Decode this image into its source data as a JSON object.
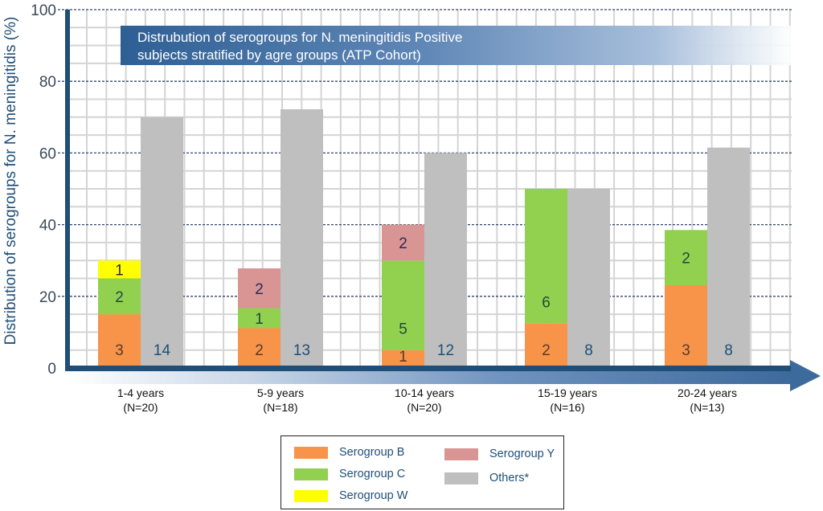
{
  "chart_data": {
    "type": "bar",
    "title": "Distrubution of serogroups for N. meningitidis Positive subjects stratified by agre groups (ATP Cohort)",
    "title_lines": [
      "Distrubution of serogroups for N. meningitidis Positive",
      "subjects stratified by agre groups (ATP Cohort)"
    ],
    "ylabel": "Distribution of serogroups for N. meningitidis (%)",
    "xlabel": "",
    "ylim": [
      0,
      100
    ],
    "yticks": [
      "0",
      "20",
      "40",
      "60",
      "80",
      "100"
    ],
    "ytick_values": [
      0,
      20,
      40,
      60,
      80,
      100
    ],
    "grid": true,
    "legend_position": "bottom-center",
    "categories": [
      {
        "label": "1-4 years",
        "n": "(N=20)"
      },
      {
        "label": "5-9 years",
        "n": "(N=18)"
      },
      {
        "label": "10-14 years",
        "n": "(N=20)"
      },
      {
        "label": "15-19 years",
        "n": "(N=16)"
      },
      {
        "label": "20-24 years",
        "n": "(N=13)"
      }
    ],
    "stacked_series": [
      {
        "name": "Serogroup B",
        "color": "#f7944a",
        "label_color": "#5a3a2a",
        "percent": [
          15,
          11.1,
          5,
          12.5,
          23.1
        ],
        "counts": [
          "3",
          "2",
          "1",
          "2",
          "3"
        ]
      },
      {
        "name": "Serogroup C",
        "color": "#92d050",
        "label_color": "#1e4a3a",
        "percent": [
          10,
          5.6,
          25,
          37.5,
          15.4
        ],
        "counts": [
          "2",
          "1",
          "5",
          "6",
          "2"
        ]
      },
      {
        "name": "Serogroup W",
        "color": "#ffff00",
        "label_color": "#2a2a2a",
        "percent": [
          5,
          0,
          0,
          0,
          0
        ],
        "counts": [
          "1",
          "",
          "",
          "",
          ""
        ]
      },
      {
        "name": "Serogroup Y",
        "color": "#d99594",
        "label_color": "#2a2a5a",
        "percent": [
          0,
          11.1,
          10,
          0,
          0
        ],
        "counts": [
          "",
          "2",
          "2",
          "",
          ""
        ]
      }
    ],
    "others_series": {
      "name": "Others*",
      "color": "#bfbfbf",
      "label_color": "#1f4f78",
      "percent": [
        70,
        72.2,
        60,
        50,
        61.5
      ],
      "counts": [
        "14",
        "13",
        "12",
        "8",
        "8"
      ]
    }
  },
  "legend": {
    "items": [
      {
        "label": "Serogroup B",
        "color": "#f7944a"
      },
      {
        "label": "Serogroup C",
        "color": "#92d050"
      },
      {
        "label": "Serogroup W",
        "color": "#ffff00"
      },
      {
        "label": "Serogroup Y",
        "color": "#d99594"
      },
      {
        "label": "Others*",
        "color": "#bfbfbf"
      }
    ]
  },
  "colors": {
    "axis": "#1f4f78",
    "title_banner": "#2e5f94"
  }
}
